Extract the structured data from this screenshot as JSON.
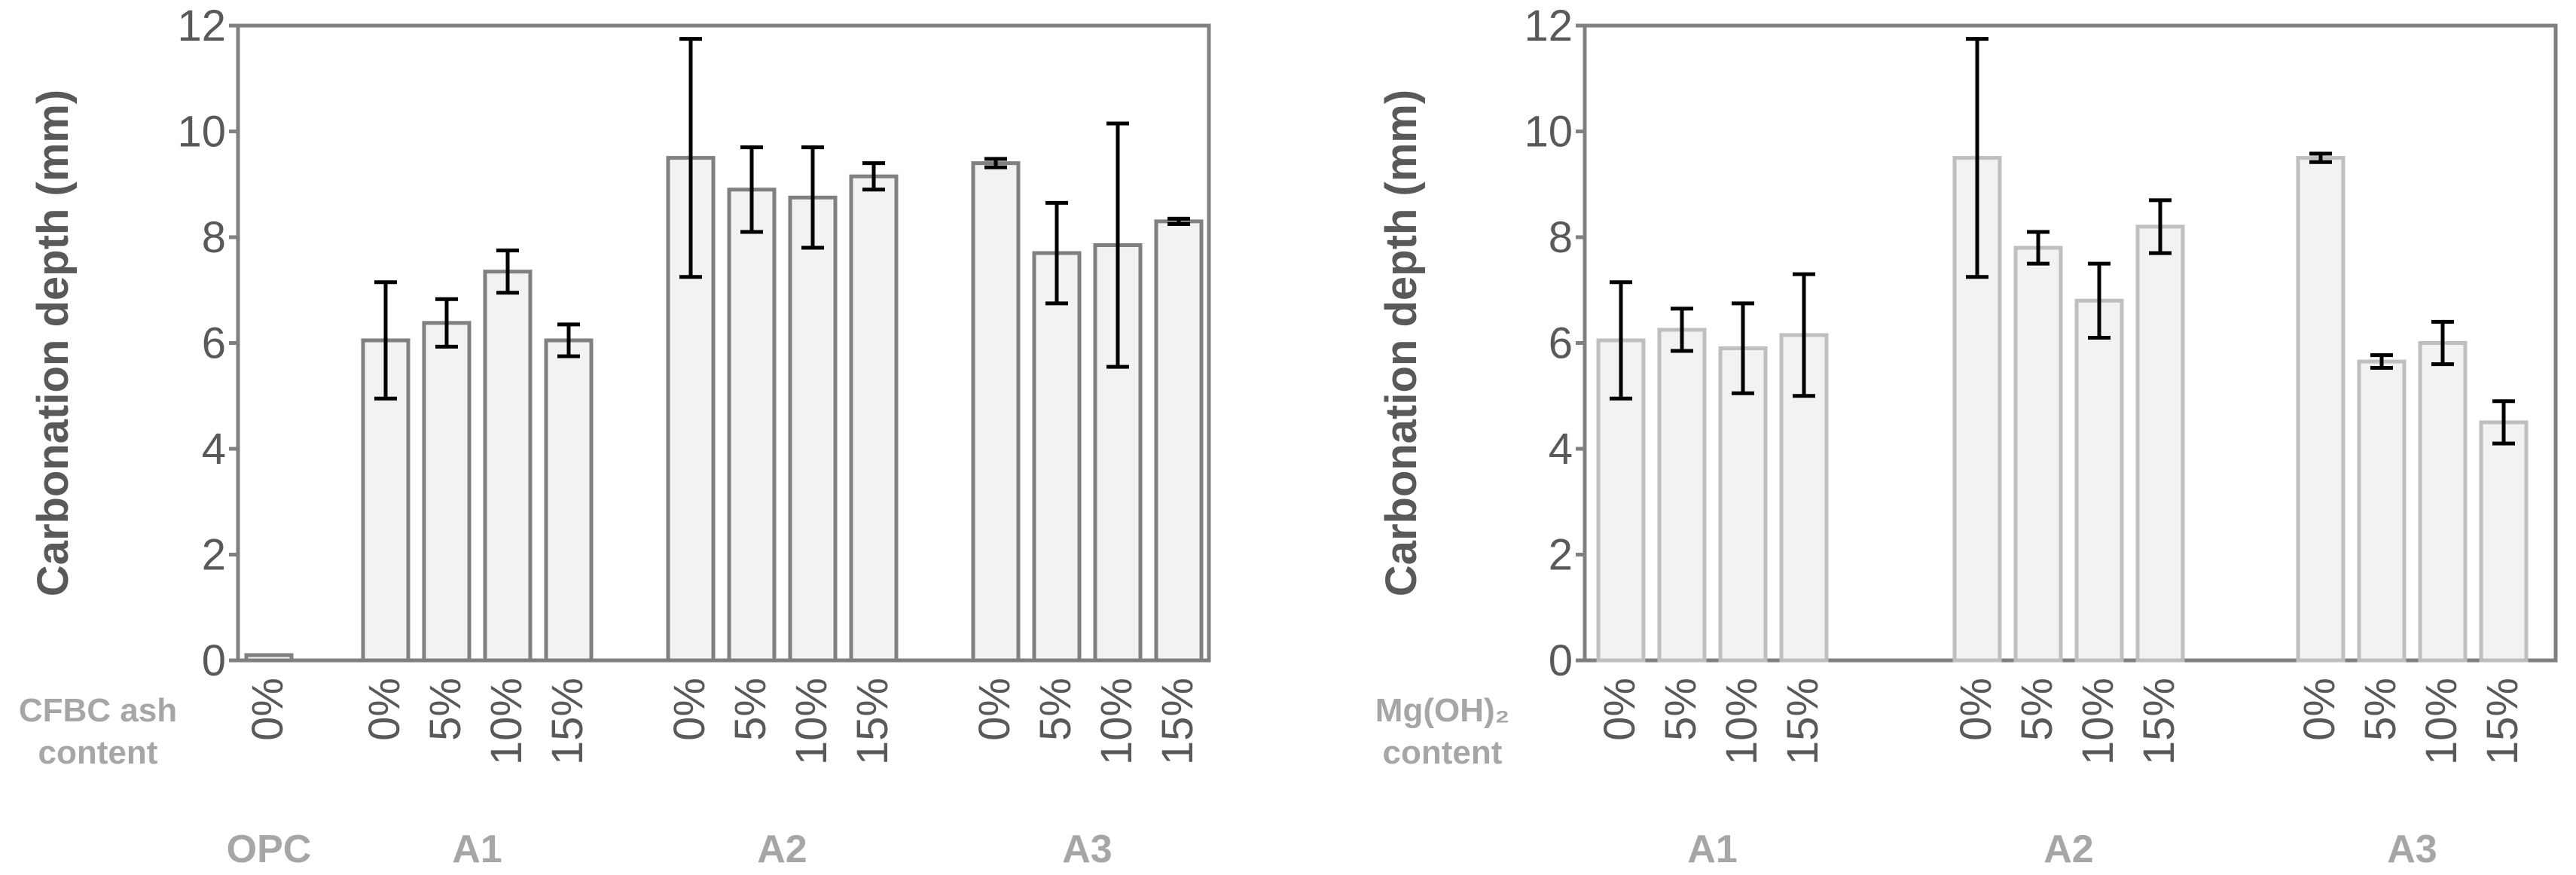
{
  "colors": {
    "bar_fill": "#f2f2f2",
    "bar_stroke_left": "#808080",
    "bar_stroke_right": "#bfbfbf",
    "axis": "#808080",
    "tick_text": "#595959",
    "category_text": "#a6a6a6",
    "error_bar": "#000000",
    "ylabel": "#595959"
  },
  "chart_data": [
    {
      "type": "bar",
      "title": "",
      "ylabel": "Carbonation depth (mm)",
      "xlabel_lines": [
        "CFBC ash",
        "content"
      ],
      "ylim": [
        0,
        12
      ],
      "yticks": [
        0,
        2,
        4,
        6,
        8,
        10,
        12
      ],
      "grid": false,
      "groups": [
        {
          "name": "OPC",
          "bars": [
            {
              "label": "0%",
              "value": 0.1,
              "error": 0.0
            }
          ]
        },
        {
          "name": "A1",
          "bars": [
            {
              "label": "0%",
              "value": 6.05,
              "error": 1.1
            },
            {
              "label": "5%",
              "value": 6.38,
              "error": 0.45
            },
            {
              "label": "10%",
              "value": 7.35,
              "error": 0.4
            },
            {
              "label": "15%",
              "value": 6.05,
              "error": 0.3
            }
          ]
        },
        {
          "name": "A2",
          "bars": [
            {
              "label": "0%",
              "value": 9.5,
              "error": 2.25
            },
            {
              "label": "5%",
              "value": 8.9,
              "error": 0.8
            },
            {
              "label": "10%",
              "value": 8.75,
              "error": 0.95
            },
            {
              "label": "15%",
              "value": 9.15,
              "error": 0.25
            }
          ]
        },
        {
          "name": "A3",
          "bars": [
            {
              "label": "0%",
              "value": 9.4,
              "error": 0.08
            },
            {
              "label": "5%",
              "value": 7.7,
              "error": 0.95
            },
            {
              "label": "10%",
              "value": 7.85,
              "error": 2.3
            },
            {
              "label": "15%",
              "value": 8.3,
              "error": 0.05
            }
          ]
        }
      ]
    },
    {
      "type": "bar",
      "title": "",
      "ylabel": "Carbonation depth (mm)",
      "xlabel_lines": [
        "Mg(OH)₂",
        "content"
      ],
      "ylim": [
        0,
        12
      ],
      "yticks": [
        0,
        2,
        4,
        6,
        8,
        10,
        12
      ],
      "grid": false,
      "groups": [
        {
          "name": "A1",
          "bars": [
            {
              "label": "0%",
              "value": 6.05,
              "error": 1.1
            },
            {
              "label": "5%",
              "value": 6.25,
              "error": 0.4
            },
            {
              "label": "10%",
              "value": 5.9,
              "error": 0.85
            },
            {
              "label": "15%",
              "value": 6.15,
              "error": 1.15
            }
          ]
        },
        {
          "name": "A2",
          "bars": [
            {
              "label": "0%",
              "value": 9.5,
              "error": 2.25
            },
            {
              "label": "5%",
              "value": 7.8,
              "error": 0.3
            },
            {
              "label": "10%",
              "value": 6.8,
              "error": 0.7
            },
            {
              "label": "15%",
              "value": 8.2,
              "error": 0.5
            }
          ]
        },
        {
          "name": "A3",
          "bars": [
            {
              "label": "0%",
              "value": 9.5,
              "error": 0.08
            },
            {
              "label": "5%",
              "value": 5.65,
              "error": 0.12
            },
            {
              "label": "10%",
              "value": 6.0,
              "error": 0.4
            },
            {
              "label": "15%",
              "value": 4.5,
              "error": 0.4
            }
          ]
        }
      ]
    }
  ]
}
